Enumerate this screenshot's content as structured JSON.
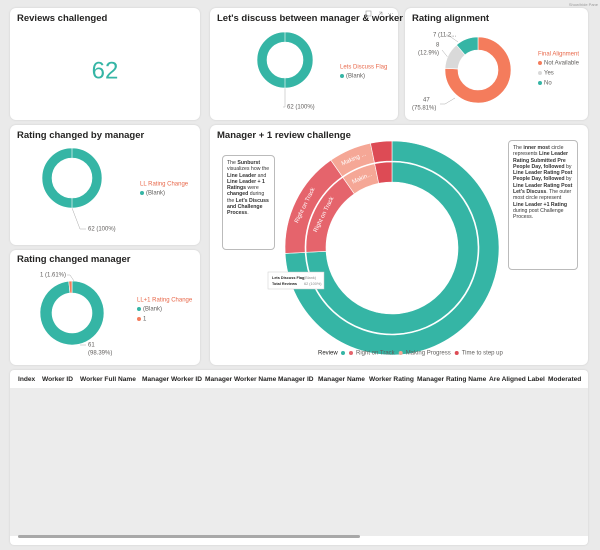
{
  "pane_toggle": "Show/hide Pane",
  "reviews_challenged": {
    "title": "Reviews challenged",
    "value": 62
  },
  "discuss": {
    "title": "Let's discuss between manager & worker",
    "legend_title": "Lets Discuss Flag",
    "slices": [
      {
        "name": "(Blank)",
        "color": "#35b5a5",
        "value": 62,
        "label": [
          "62 (100%)"
        ]
      }
    ]
  },
  "alignment": {
    "title": "Rating alignment",
    "legend_title": "Final Alignment",
    "slices": [
      {
        "name": "Not Available",
        "color": "#f47c5c",
        "value": 47,
        "label": [
          "47",
          "(75.81%)"
        ]
      },
      {
        "name": "Yes",
        "color": "#d9d9d9",
        "value": 8,
        "label": [
          "8",
          "(12.9%)"
        ]
      },
      {
        "name": "No",
        "color": "#35b5a5",
        "value": 7,
        "label": [
          "7 (11.2..."
        ]
      }
    ]
  },
  "rating_changed_by_manager": {
    "title": "Rating changed by manager",
    "legend_title": "LL Rating Change",
    "slices": [
      {
        "name": "(Blank)",
        "color": "#35b5a5",
        "value": 62,
        "label": [
          "62 (100%)"
        ]
      }
    ]
  },
  "rating_changed_manager": {
    "title": "Rating changed manager",
    "legend_title": "LL+1 Rating Change",
    "slices": [
      {
        "name": "(Blank)",
        "color": "#35b5a5",
        "value": 61,
        "label": [
          "61",
          "(98.39%)"
        ]
      },
      {
        "name": "1",
        "color": "#f47c5c",
        "value": 1,
        "label": [
          "1 (1.61%)"
        ]
      }
    ]
  },
  "sunburst": {
    "title": "Manager + 1 review challenge",
    "legend_title": "Review",
    "segments": [
      {
        "name": null,
        "color": "#35b5a5",
        "value": 46
      },
      {
        "name": "Right on Track",
        "color": "#e5646c",
        "value": 10
      },
      {
        "name": "Making Progress",
        "color": "#f5a796",
        "value": 4
      },
      {
        "name": "Time to step up",
        "color": "#dd4b55",
        "value": 2
      }
    ],
    "ring_labels": {
      "inner": [
        null,
        "Right on Track",
        "Makin..."
      ],
      "outer": [
        null,
        "Right on Track",
        "Making ..."
      ]
    },
    "tooltip": [
      [
        "Lets Discuss Flag",
        "(Blank)"
      ],
      [
        "Total Reviews",
        "62 (100%)"
      ]
    ],
    "note_left": [
      {
        "text": "The ",
        "bold": false
      },
      {
        "text": "Sunburst",
        "bold": true
      },
      {
        "text": " visualizes how the ",
        "bold": false
      },
      {
        "text": "Line Leader",
        "bold": true
      },
      {
        "text": " and ",
        "bold": false
      },
      {
        "text": "Line Leader + 1 Ratings",
        "bold": true
      },
      {
        "text": " were ",
        "bold": false
      },
      {
        "text": "changed",
        "bold": true
      },
      {
        "text": " during the ",
        "bold": false
      },
      {
        "text": "Let's Discuss and Challenge Process",
        "bold": true
      },
      {
        "text": ".",
        "bold": false
      }
    ],
    "note_right": [
      {
        "text": "The ",
        "bold": false
      },
      {
        "text": "inner most",
        "bold": true
      },
      {
        "text": " circle represents ",
        "bold": false
      },
      {
        "text": "Line Leader Rating Submitted Pre People Day, followed",
        "bold": true
      },
      {
        "text": " by ",
        "bold": false
      },
      {
        "text": "Line Leader Rating Post People Day, followed",
        "bold": true
      },
      {
        "text": " by ",
        "bold": false
      },
      {
        "text": "Line Leader Rating Post Let's Discuss",
        "bold": true
      },
      {
        "text": ". The outer most circle represent ",
        "bold": false
      },
      {
        "text": "Line Leader +1 Rating",
        "bold": true
      },
      {
        "text": " during post Challenge Process.",
        "bold": false
      }
    ]
  },
  "table": {
    "headers": [
      "Index",
      "Worker ID",
      "Worker Full Name",
      "Manager Worker ID",
      "Manager Worker Name",
      "Manager ID",
      "Manager Name",
      "Worker Rating",
      "Manager Rating Name",
      "Are Aligned Label",
      "Moderated"
    ]
  }
}
